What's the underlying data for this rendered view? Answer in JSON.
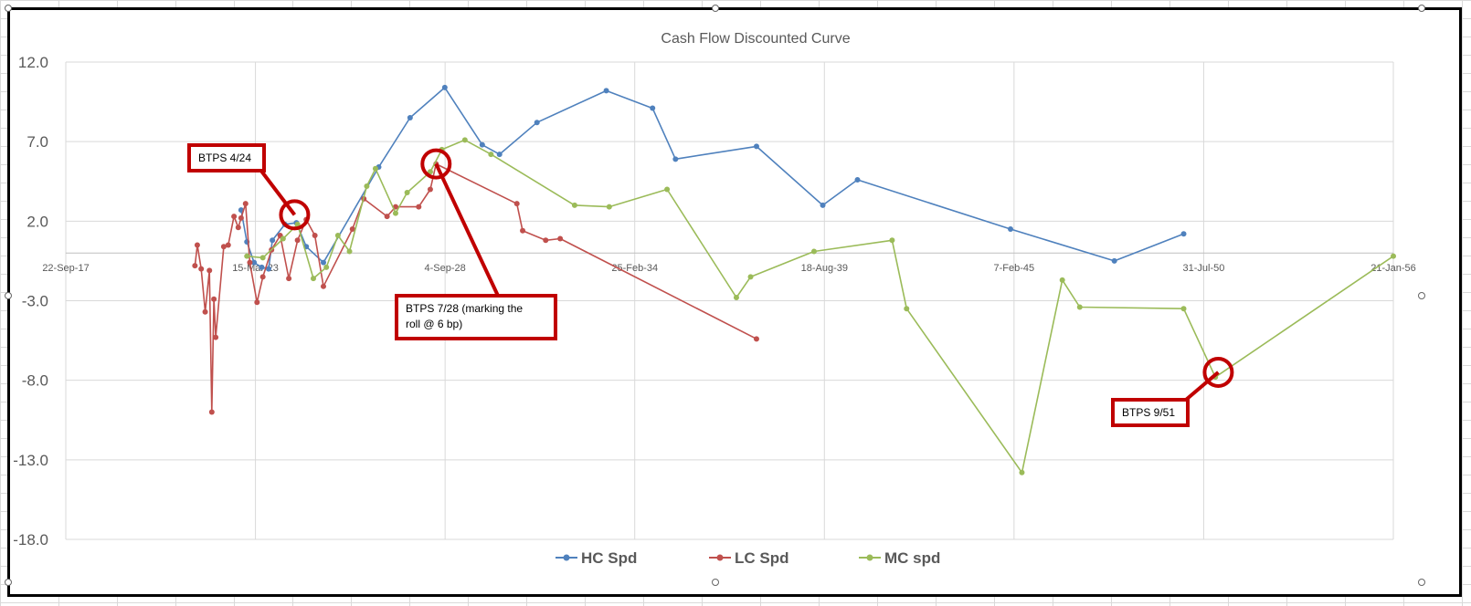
{
  "chart_data": {
    "type": "line",
    "title": "Cash Flow Discounted Curve",
    "xlabel": "",
    "ylabel": "",
    "x_ticks": [
      "22-Sep-17",
      "15-Mar-23",
      "4-Sep-28",
      "25-Feb-34",
      "18-Aug-39",
      "7-Feb-45",
      "31-Jul-50",
      "21-Jan-56"
    ],
    "x_tick_dates": [
      "2017-09-22",
      "2023-03-15",
      "2028-09-04",
      "2034-02-25",
      "2039-08-18",
      "2045-02-07",
      "2050-07-31",
      "2056-01-21"
    ],
    "y_ticks": [
      "12.0",
      "7.0",
      "2.0",
      "-3.0",
      "-8.0",
      "-13.0",
      "-18.0"
    ],
    "ylim": [
      -18,
      12
    ],
    "grid": true,
    "legend_position": "bottom",
    "series": [
      {
        "name": "HC Spd",
        "color": "#4f81bd",
        "points": [
          [
            "2022-10-15",
            2.7
          ],
          [
            "2022-12-15",
            0.7
          ],
          [
            "2023-03-01",
            -0.6
          ],
          [
            "2023-05-20",
            -0.9
          ],
          [
            "2023-08-01",
            -1.0
          ],
          [
            "2023-09-10",
            0.8
          ],
          [
            "2024-01-20",
            1.8
          ],
          [
            "2024-05-20",
            1.9
          ],
          [
            "2024-09-01",
            0.4
          ],
          [
            "2025-03-01",
            -0.6
          ],
          [
            "2026-10-05",
            5.4
          ],
          [
            "2027-09-01",
            8.5
          ],
          [
            "2028-09-01",
            10.4
          ],
          [
            "2029-10-01",
            6.8
          ],
          [
            "2030-04-01",
            6.2
          ],
          [
            "2031-05-01",
            8.2
          ],
          [
            "2033-05-01",
            10.2
          ],
          [
            "2034-09-01",
            9.1
          ],
          [
            "2035-05-01",
            5.9
          ],
          [
            "2037-09-01",
            6.7
          ],
          [
            "2039-08-01",
            3.0
          ],
          [
            "2040-08-01",
            4.6
          ],
          [
            "2045-01-01",
            1.5
          ],
          [
            "2048-01-01",
            -0.5
          ],
          [
            "2050-01-01",
            1.2
          ]
        ]
      },
      {
        "name": "LC Spd",
        "color": "#c0504d",
        "points": [
          [
            "2021-06-15",
            -0.8
          ],
          [
            "2021-07-10",
            0.5
          ],
          [
            "2021-08-20",
            -1.0
          ],
          [
            "2021-10-01",
            -3.7
          ],
          [
            "2021-11-15",
            -1.1
          ],
          [
            "2021-12-10",
            -10.0
          ],
          [
            "2022-01-01",
            -2.9
          ],
          [
            "2022-01-20",
            -5.3
          ],
          [
            "2022-04-15",
            0.4
          ],
          [
            "2022-06-01",
            0.5
          ],
          [
            "2022-08-01",
            2.3
          ],
          [
            "2022-09-15",
            1.6
          ],
          [
            "2022-10-15",
            2.2
          ],
          [
            "2022-12-01",
            3.1
          ],
          [
            "2023-01-15",
            -0.6
          ],
          [
            "2023-04-01",
            -3.1
          ],
          [
            "2023-06-01",
            -1.5
          ],
          [
            "2023-09-01",
            0.2
          ],
          [
            "2023-12-01",
            1.1
          ],
          [
            "2024-03-01",
            -1.6
          ],
          [
            "2024-06-01",
            0.8
          ],
          [
            "2024-09-01",
            2.1
          ],
          [
            "2024-12-01",
            1.1
          ],
          [
            "2025-03-01",
            -2.1
          ],
          [
            "2026-01-01",
            1.5
          ],
          [
            "2026-05-01",
            3.4
          ],
          [
            "2027-01-01",
            2.3
          ],
          [
            "2027-04-01",
            2.9
          ],
          [
            "2027-12-01",
            2.9
          ],
          [
            "2028-04-01",
            4.0
          ],
          [
            "2028-06-01",
            5.6
          ],
          [
            "2030-10-01",
            3.1
          ],
          [
            "2030-12-01",
            1.4
          ],
          [
            "2031-08-01",
            0.8
          ],
          [
            "2032-01-01",
            0.9
          ],
          [
            "2037-09-01",
            -5.4
          ]
        ]
      },
      {
        "name": "MC spd",
        "color": "#9bbb59",
        "points": [
          [
            "2022-12-15",
            -0.2
          ],
          [
            "2023-06-01",
            -0.3
          ],
          [
            "2024-01-01",
            0.9
          ],
          [
            "2024-06-01",
            1.8
          ],
          [
            "2024-11-15",
            -1.6
          ],
          [
            "2025-04-01",
            -0.9
          ],
          [
            "2025-08-01",
            1.1
          ],
          [
            "2025-12-01",
            0.1
          ],
          [
            "2026-06-01",
            4.2
          ],
          [
            "2026-09-01",
            5.3
          ],
          [
            "2027-04-01",
            2.5
          ],
          [
            "2027-08-01",
            3.8
          ],
          [
            "2028-04-01",
            5.1
          ],
          [
            "2028-08-01",
            6.5
          ],
          [
            "2029-04-01",
            7.1
          ],
          [
            "2030-01-01",
            6.2
          ],
          [
            "2032-06-01",
            3.0
          ],
          [
            "2033-06-01",
            2.9
          ],
          [
            "2035-02-01",
            4.0
          ],
          [
            "2037-02-01",
            -2.8
          ],
          [
            "2037-07-01",
            -1.5
          ],
          [
            "2039-05-01",
            0.1
          ],
          [
            "2041-08-01",
            0.8
          ],
          [
            "2042-01-01",
            -3.5
          ],
          [
            "2045-05-01",
            -13.8
          ],
          [
            "2046-07-01",
            -1.7
          ],
          [
            "2047-01-01",
            -3.4
          ],
          [
            "2050-01-01",
            -3.5
          ],
          [
            "2050-12-01",
            -7.8
          ],
          [
            "2056-01-21",
            -0.2
          ]
        ]
      }
    ],
    "annotations": [
      {
        "text": "BTPS 4/24",
        "x": "2024-05-01",
        "y": 2.4
      },
      {
        "text": "BTPS 7/28 (marking the roll @ 6 bp)",
        "x": "2028-06-01",
        "y": 5.6
      },
      {
        "text": "BTPS 9/51",
        "x": "2051-01-01",
        "y": -7.5
      }
    ]
  }
}
